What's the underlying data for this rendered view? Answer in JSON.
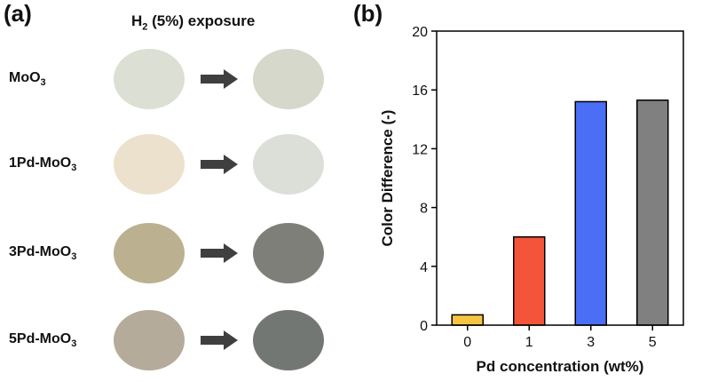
{
  "panel_labels": {
    "a": "(a)",
    "b": "(b)"
  },
  "panel_a": {
    "header_prefix": "H",
    "header_sub": "2",
    "header_suffix": " (5%) exposure",
    "samples": [
      {
        "name_main": "MoO",
        "name_sub": "3",
        "before_color": "#dcdfd4",
        "after_color": "#d6d8cc"
      },
      {
        "name_main": "1Pd-MoO",
        "name_sub": "3",
        "before_color": "#ece1cc",
        "after_color": "#dcdfd8"
      },
      {
        "name_main": "3Pd-MoO",
        "name_sub": "3",
        "before_color": "#bbb190",
        "after_color": "#7e7f78"
      },
      {
        "name_main": "5Pd-MoO",
        "name_sub": "3",
        "before_color": "#b4ab9b",
        "after_color": "#727774"
      }
    ],
    "arrow_color": "#3f3f3f"
  },
  "chart_data": {
    "type": "bar",
    "categories": [
      "0",
      "1",
      "3",
      "5"
    ],
    "values": [
      0.7,
      6.0,
      15.2,
      15.3
    ],
    "colors": [
      "#f5c542",
      "#f4553a",
      "#4a6ef5",
      "#808080"
    ],
    "xlabel": "Pd concentration (wt%)",
    "ylabel": "Color Difference (-)",
    "ylim": [
      0,
      20
    ],
    "yticks": [
      0,
      4,
      8,
      12,
      16,
      20
    ],
    "grid": false
  }
}
